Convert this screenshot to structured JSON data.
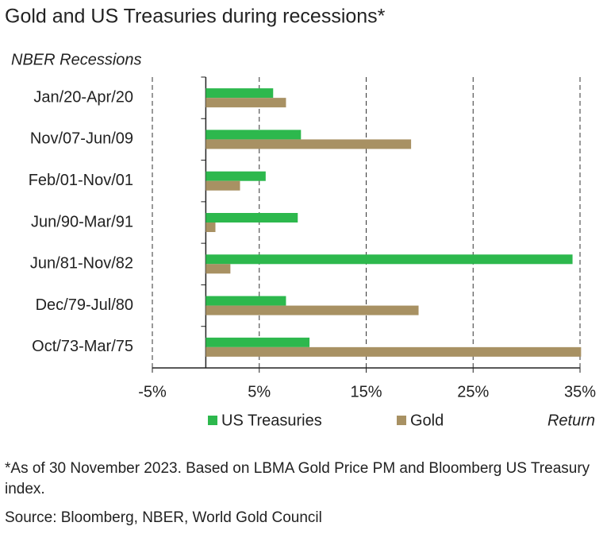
{
  "chart_data": {
    "type": "hbar",
    "title": "Gold and US Treasuries during recessions*",
    "y_label": "NBER Recessions",
    "x_label": "Return",
    "categories": [
      "Jan/20-Apr/20",
      "Nov/07-Jun/09",
      "Feb/01-Nov/01",
      "Jun/90-Mar/91",
      "Jun/81-Nov/82",
      "Dec/79-Jul/80",
      "Oct/73-Mar/75"
    ],
    "series": [
      {
        "name": "US Treasuries",
        "color": "#2db84d",
        "values": [
          6.3,
          8.9,
          5.6,
          8.6,
          34.3,
          7.5,
          9.7
        ]
      },
      {
        "name": "Gold",
        "color": "#a89163",
        "values": [
          7.5,
          19.2,
          3.2,
          0.9,
          2.3,
          19.9,
          35.1
        ]
      }
    ],
    "xlim": [
      -5,
      35
    ],
    "xticks": [
      {
        "value": -5,
        "label": "-5%"
      },
      {
        "value": 5,
        "label": "5%"
      },
      {
        "value": 15,
        "label": "15%"
      },
      {
        "value": 25,
        "label": "25%"
      },
      {
        "value": 35,
        "label": "35%"
      }
    ],
    "grid": true,
    "legend": "bottom",
    "footnote": "*As of 30 November 2023. Based on LBMA Gold Price PM and Bloomberg US Treasury index.",
    "source": "Source: Bloomberg, NBER, World Gold Council"
  }
}
